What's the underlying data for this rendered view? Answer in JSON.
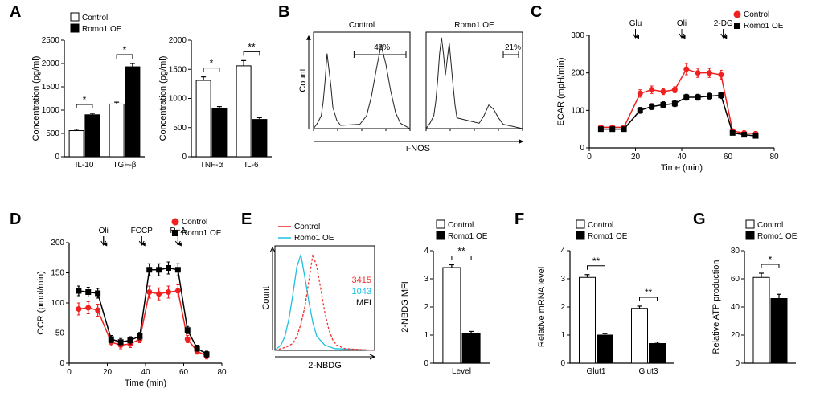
{
  "labels": {
    "A": "A",
    "B": "B",
    "C": "C",
    "D": "D",
    "E": "E",
    "F": "F",
    "G": "G"
  },
  "colors": {
    "control": "#f02020",
    "romo": "#000000",
    "white": "#ffffff",
    "black": "#000000",
    "red_text": "#f03030",
    "blue_text": "#20c0e0"
  },
  "legend": {
    "control": "Control",
    "romo": "Romo1 OE"
  },
  "A": {
    "type": "bar",
    "ylabel": "Concentration (pg/ml)",
    "left": {
      "ylim": [
        0,
        2500
      ],
      "yticks": [
        0,
        500,
        1000,
        1500,
        2000,
        2500
      ],
      "groups": [
        "IL-10",
        "TGF-β"
      ],
      "control": {
        "vals": [
          560,
          1130
        ],
        "err": [
          30,
          40
        ]
      },
      "romo": {
        "vals": [
          900,
          1930
        ],
        "err": [
          30,
          70
        ]
      },
      "sig": [
        "*",
        "*"
      ]
    },
    "right": {
      "ylim": [
        0,
        2000
      ],
      "yticks": [
        0,
        500,
        1000,
        1500,
        2000
      ],
      "groups": [
        "TNF-α",
        "IL-6"
      ],
      "control": {
        "vals": [
          1310,
          1560
        ],
        "err": [
          60,
          90
        ]
      },
      "romo": {
        "vals": [
          830,
          640
        ],
        "err": [
          30,
          30
        ]
      },
      "sig": [
        "*",
        "**"
      ]
    }
  },
  "B": {
    "type": "histogram_pair",
    "xlabel": "i-NOS",
    "ylabel": "Count",
    "left_title": "Control",
    "right_title": "Romo1 OE",
    "left_pct": "48%",
    "right_pct": "21%",
    "left": {
      "x": [
        0,
        4,
        8,
        10,
        12,
        14,
        16,
        18,
        20,
        24,
        28,
        48,
        55,
        60,
        65,
        70,
        75,
        80,
        85,
        90,
        100
      ],
      "y": [
        0,
        5,
        12,
        25,
        45,
        70,
        55,
        40,
        20,
        8,
        3,
        4,
        12,
        30,
        55,
        78,
        60,
        35,
        15,
        5,
        0
      ],
      "ymax": 90
    },
    "right": {
      "x": [
        0,
        4,
        8,
        10,
        12,
        14,
        16,
        18,
        20,
        22,
        24,
        26,
        28,
        30,
        32,
        55,
        60,
        65,
        70,
        75,
        80,
        100
      ],
      "y": [
        0,
        5,
        12,
        25,
        45,
        70,
        85,
        70,
        50,
        65,
        80,
        60,
        40,
        22,
        10,
        5,
        12,
        22,
        18,
        10,
        4,
        0
      ],
      "ymax": 90
    }
  },
  "C": {
    "type": "line",
    "ylabel": "ECAR (mpH/min)",
    "xlabel": "Time (min)",
    "xlim": [
      0,
      80
    ],
    "xticks": [
      0,
      20,
      40,
      60,
      80
    ],
    "ylim": [
      0,
      300
    ],
    "yticks": [
      0,
      100,
      200,
      300
    ],
    "injections": [
      {
        "label": "Glu",
        "x": 20
      },
      {
        "label": "Oli",
        "x": 40
      },
      {
        "label": "2-DG",
        "x": 58
      }
    ],
    "x": [
      5,
      10,
      15,
      22,
      27,
      32,
      37,
      42,
      47,
      52,
      57,
      62,
      67,
      72
    ],
    "control": {
      "y": [
        55,
        55,
        55,
        145,
        155,
        150,
        155,
        210,
        200,
        200,
        195,
        45,
        40,
        38
      ],
      "err": [
        5,
        5,
        5,
        10,
        10,
        8,
        8,
        15,
        12,
        12,
        12,
        5,
        5,
        5
      ]
    },
    "romo": {
      "y": [
        50,
        50,
        50,
        100,
        110,
        115,
        118,
        135,
        135,
        138,
        140,
        40,
        35,
        32
      ],
      "err": [
        5,
        5,
        5,
        8,
        8,
        8,
        8,
        8,
        8,
        8,
        8,
        5,
        5,
        5
      ]
    }
  },
  "D": {
    "type": "line",
    "ylabel": "OCR (pmol/min)",
    "xlabel": "Time (min)",
    "xlim": [
      0,
      80
    ],
    "xticks": [
      0,
      20,
      40,
      60,
      80
    ],
    "ylim": [
      0,
      200
    ],
    "yticks": [
      0,
      50,
      100,
      150,
      200
    ],
    "injections": [
      {
        "label": "Oli",
        "x": 18
      },
      {
        "label": "FCCP",
        "x": 38
      },
      {
        "label": "R+A",
        "x": 57
      }
    ],
    "x": [
      5,
      10,
      15,
      22,
      27,
      32,
      37,
      42,
      47,
      52,
      57,
      62,
      67,
      72
    ],
    "control": {
      "y": [
        90,
        92,
        88,
        35,
        30,
        32,
        40,
        118,
        115,
        118,
        120,
        40,
        20,
        12
      ],
      "err": [
        10,
        10,
        10,
        6,
        6,
        6,
        6,
        10,
        10,
        10,
        10,
        6,
        5,
        5
      ]
    },
    "romo": {
      "y": [
        120,
        118,
        116,
        40,
        35,
        38,
        45,
        155,
        155,
        158,
        155,
        55,
        25,
        15
      ],
      "err": [
        8,
        8,
        8,
        6,
        6,
        6,
        6,
        10,
        10,
        10,
        10,
        6,
        5,
        5
      ]
    }
  },
  "E": {
    "type": "histogram+bar",
    "xlabel": "2-NBDG",
    "hist_ylabel": "Count",
    "control_mfi": "3415",
    "romo_mfi": "1043",
    "mfi_label": "MFI",
    "hist_control": {
      "x": [
        0,
        12,
        18,
        22,
        26,
        30,
        34,
        38,
        42,
        46,
        50,
        54,
        58,
        62,
        70,
        100
      ],
      "y": [
        0,
        2,
        4,
        8,
        15,
        25,
        40,
        55,
        48,
        35,
        22,
        12,
        6,
        3,
        1,
        0
      ],
      "ymax": 60,
      "color": "#f03030"
    },
    "hist_romo": {
      "x": [
        0,
        6,
        10,
        14,
        18,
        22,
        26,
        30,
        34,
        38,
        42,
        50,
        60,
        100
      ],
      "y": [
        0,
        3,
        8,
        18,
        32,
        48,
        55,
        42,
        28,
        16,
        8,
        3,
        1,
        0
      ],
      "ymax": 60,
      "color": "#20c0e0"
    },
    "bar": {
      "ylabel": "2-NBDG MFI",
      "ylim": [
        0,
        4
      ],
      "yticks": [
        0,
        1,
        2,
        3,
        4
      ],
      "groups": [
        "Level"
      ],
      "control": {
        "vals": [
          3.4
        ],
        "err": [
          0.1
        ]
      },
      "romo": {
        "vals": [
          1.05
        ],
        "err": [
          0.08
        ]
      },
      "sig": [
        "**"
      ]
    }
  },
  "F": {
    "type": "bar",
    "ylabel": "Relative mRNA level",
    "ylim": [
      0,
      4
    ],
    "yticks": [
      0,
      1,
      2,
      3,
      4
    ],
    "groups": [
      "Glut1",
      "Glut3"
    ],
    "control": {
      "vals": [
        3.05,
        1.95
      ],
      "err": [
        0.1,
        0.08
      ]
    },
    "romo": {
      "vals": [
        1.0,
        0.7
      ],
      "err": [
        0.05,
        0.05
      ]
    },
    "sig": [
      "**",
      "**"
    ]
  },
  "G": {
    "type": "bar",
    "ylabel": "Relative ATP production",
    "ylim": [
      0,
      80
    ],
    "yticks": [
      0,
      20,
      40,
      60,
      80
    ],
    "groups": [
      ""
    ],
    "control": {
      "vals": [
        61
      ],
      "err": [
        3
      ]
    },
    "romo": {
      "vals": [
        46
      ],
      "err": [
        3
      ]
    },
    "sig": [
      "*"
    ]
  }
}
